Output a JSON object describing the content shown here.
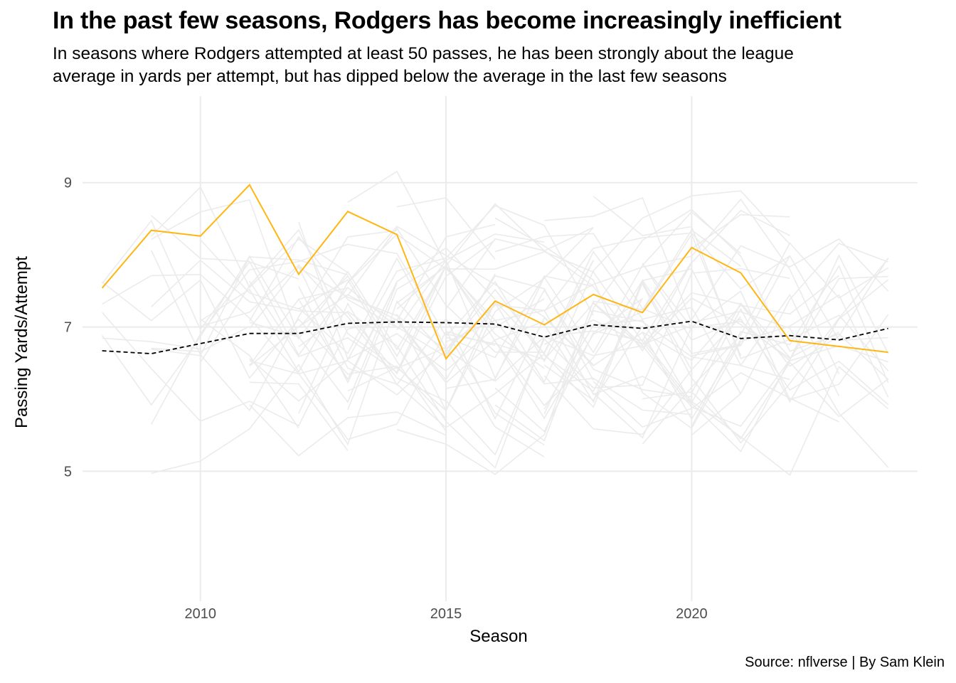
{
  "title": "In the past few seasons, Rodgers has become increasingly inefficient",
  "subtitle_lines": [
    "In seasons where Rodgers attempted at least 50 passes, he has been strongly about the league",
    "average in yards per attempt, but has dipped below the average in the last few seasons"
  ],
  "caption": "Source: nflverse | By Sam Klein",
  "colors": {
    "rodgers": "#FFB612",
    "league_average": "#000000",
    "background_lines": "#EBEBEB",
    "grid": "#EBEBEB"
  },
  "chart_data": {
    "type": "line",
    "xlabel": "Season",
    "ylabel": "Passing Yards/Attempt",
    "xlim": [
      2007.6,
      2024.6
    ],
    "ylim": [
      3.2,
      10.2
    ],
    "x_ticks": [
      2010,
      2015,
      2020
    ],
    "y_ticks": [
      5,
      7,
      9
    ],
    "grid": true,
    "legend": "none",
    "series": [
      {
        "role": "highlight",
        "style": "solid",
        "x": [
          2008,
          2009,
          2010,
          2011,
          2012,
          2013,
          2014,
          2015,
          2016,
          2017,
          2018,
          2019,
          2020,
          2021,
          2022,
          2024
        ],
        "values": [
          7.54,
          8.34,
          8.26,
          8.97,
          7.73,
          8.6,
          8.28,
          6.56,
          7.36,
          7.03,
          7.45,
          7.2,
          8.1,
          7.75,
          6.81,
          6.65
        ]
      },
      {
        "role": "average",
        "style": "dashed",
        "x": [
          2008,
          2009,
          2010,
          2011,
          2012,
          2013,
          2014,
          2015,
          2016,
          2017,
          2018,
          2019,
          2020,
          2021,
          2022,
          2023,
          2024
        ],
        "values": [
          6.67,
          6.63,
          6.77,
          6.91,
          6.91,
          7.05,
          7.07,
          7.06,
          7.04,
          6.86,
          7.03,
          6.98,
          7.08,
          6.84,
          6.88,
          6.82,
          6.98
        ]
      }
    ],
    "background_seed": 42
  }
}
